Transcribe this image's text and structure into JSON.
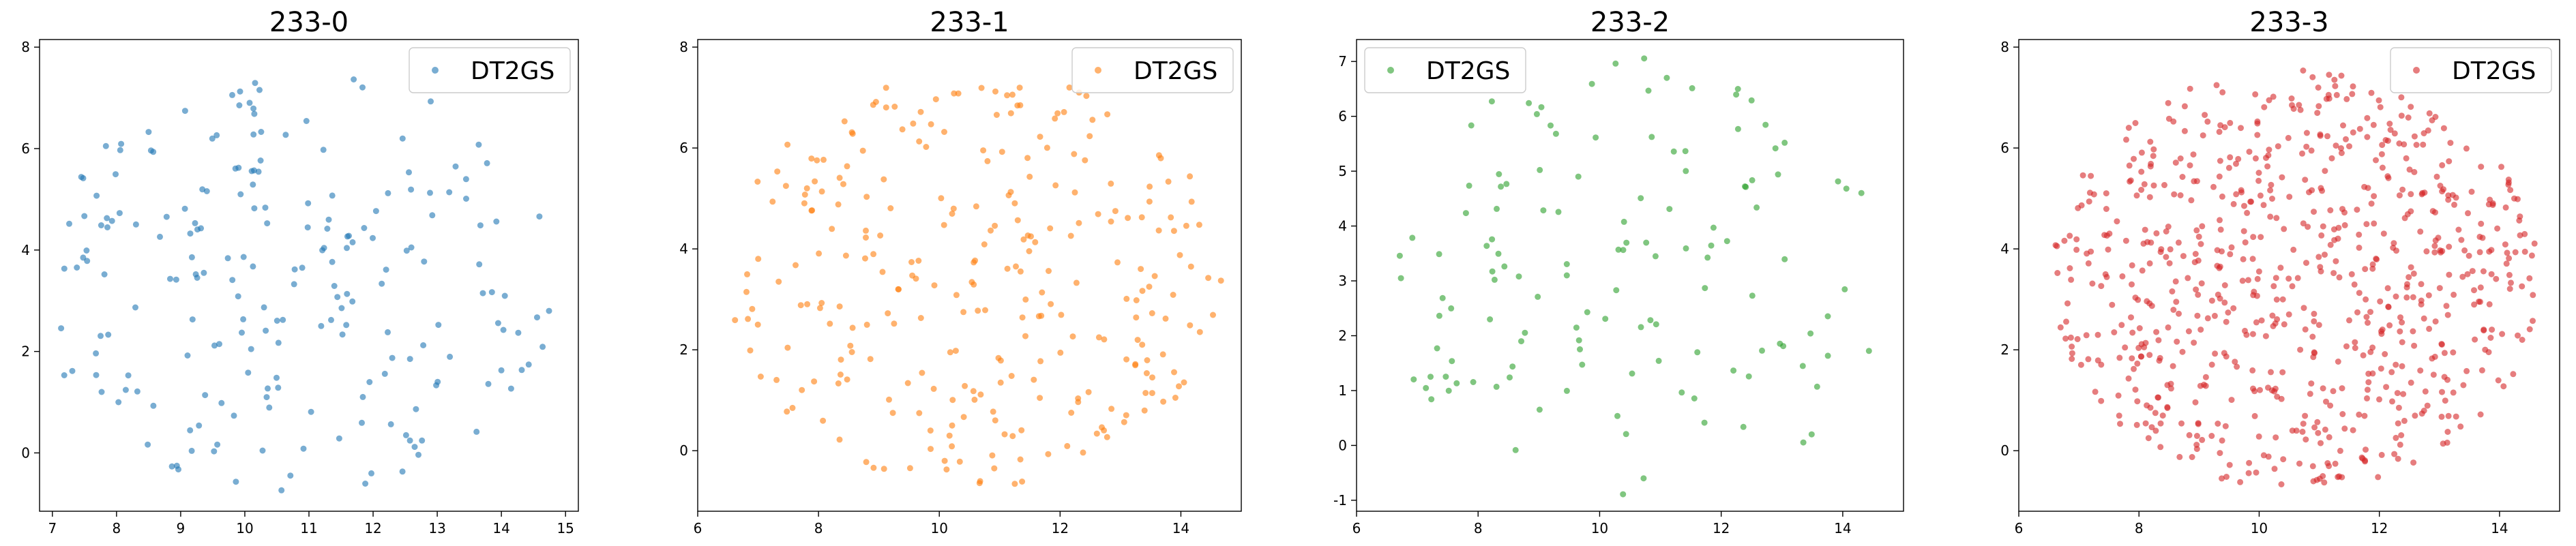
{
  "chart_data": [
    {
      "type": "scatter",
      "title": "233-0",
      "legend": {
        "label": "DT2GS",
        "placement": "upper right"
      },
      "color": "#1f77b4",
      "point_count": 210,
      "seed": 11,
      "x_center": 10.8,
      "x_spread": 1.85,
      "y_center": 3.4,
      "y_spread": 1.9,
      "xlim": [
        6.8,
        15.2
      ],
      "ylim": [
        -1.15,
        8.15
      ],
      "xticks": [
        7,
        8,
        9,
        10,
        11,
        12,
        13,
        14,
        15
      ],
      "yticks": [
        0,
        2,
        4,
        6,
        8
      ],
      "grid": false
    },
    {
      "type": "scatter",
      "title": "233-1",
      "legend": {
        "label": "DT2GS",
        "placement": "upper right"
      },
      "color": "#ff7f0e",
      "point_count": 280,
      "seed": 23,
      "x_center": 10.6,
      "x_spread": 1.85,
      "y_center": 3.4,
      "y_spread": 1.9,
      "xlim": [
        6.0,
        15.0
      ],
      "ylim": [
        -1.2,
        8.15
      ],
      "xticks": [
        6,
        8,
        10,
        12,
        14
      ],
      "yticks": [
        0,
        2,
        4,
        6,
        8
      ],
      "grid": false
    },
    {
      "type": "scatter",
      "title": "233-2",
      "legend": {
        "label": "DT2GS",
        "placement": "upper left"
      },
      "color": "#2ca02c",
      "point_count": 130,
      "seed": 37,
      "x_center": 10.6,
      "x_spread": 1.85,
      "y_center": 2.9,
      "y_spread": 1.9,
      "xlim": [
        6.0,
        15.0
      ],
      "ylim": [
        -1.2,
        7.4
      ],
      "xticks": [
        6,
        8,
        10,
        12,
        14
      ],
      "yticks": [
        -1,
        0,
        1,
        2,
        3,
        4,
        5,
        6,
        7
      ],
      "grid": false
    },
    {
      "type": "scatter",
      "title": "233-3",
      "legend": {
        "label": "DT2GS",
        "placement": "upper right"
      },
      "color": "#d62728",
      "point_count": 720,
      "seed": 59,
      "x_center": 10.6,
      "x_spread": 1.85,
      "y_center": 3.4,
      "y_spread": 1.9,
      "xlim": [
        6.0,
        15.0
      ],
      "ylim": [
        -1.2,
        8.15
      ],
      "xticks": [
        6,
        8,
        10,
        12,
        14
      ],
      "yticks": [
        0,
        2,
        4,
        6,
        8
      ],
      "grid": false
    }
  ]
}
